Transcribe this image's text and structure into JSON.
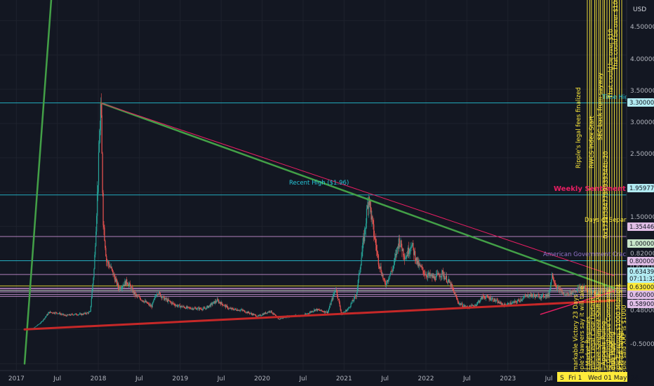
{
  "price_axis": {
    "currency_label": "USD",
    "ticks": [
      "4.50000",
      "4.00000",
      "3.50000",
      "3.00000",
      "2.50000",
      "1.50000",
      "0.82000",
      "0.62000",
      "0.56500",
      "0.55000",
      "0.54432",
      "0.50808",
      "0.48000",
      "-0.50000"
    ],
    "tags": [
      {
        "text": "3.30000",
        "bg": "#b2ebf2",
        "fg": "#131722"
      },
      {
        "text": "1.95977",
        "bg": "#b2ebf2",
        "fg": "#131722"
      },
      {
        "text": "1.35446",
        "bg": "#e1bee7",
        "fg": "#131722"
      },
      {
        "text": "1.00000",
        "bg": "#c8e6c9",
        "fg": "#131722"
      },
      {
        "text": "0.80000",
        "bg": "#e1bee7",
        "fg": "#131722"
      },
      {
        "text": "0.63439",
        "bg": "#b2ebf2",
        "fg": "#131722"
      },
      {
        "text": "07:11:32",
        "bg": "#b2ebf2",
        "fg": "#131722"
      },
      {
        "text": "0.63000",
        "bg": "#ffeb3b",
        "fg": "#131722"
      },
      {
        "text": "0.60000",
        "bg": "#e1bee7",
        "fg": "#131722"
      },
      {
        "text": "0.58900",
        "bg": "#e1bee7",
        "fg": "#131722"
      }
    ]
  },
  "time_axis": {
    "ticks": [
      "2017",
      "Jul",
      "2018",
      "Jul",
      "2019",
      "Jul",
      "2020",
      "Jul",
      "2021",
      "Jul",
      "2022",
      "Jul",
      "2023",
      "Jul"
    ],
    "crosshair_date": "Wed 01 May '24",
    "crosshair_day": "Fri 1",
    "crosshair_marker": "S"
  },
  "annotations": {
    "ath": "Time High ($3.30)",
    "recent_high": "Recent High ($1.96)",
    "weekly": "Weekly Sentiment",
    "days_sep": "Days of Separati",
    "gov": "American Government Crackdown",
    "v1": "Remarkable Victory 23 Days",
    "v2": "Ripple's lawyers say it will take",
    "v3": "Bull Market Resumes",
    "v4": "Ripple's Legal Case Update",
    "v5": "Market Sentiment Shift 20",
    "v6": "SEC Appeals Ruling",
    "v7": "Brad Garlinghouse Comments",
    "v8": "Trading Halt",
    "v9": "Ripple Earnings $1000 Midnight",
    "v10": "XRP Price Target",
    "v11": "Rulings Pending",
    "v12": "Ripple said XRP is $1000",
    "v13": "Ripple's legal fees finalized",
    "v14": "RWCS Index Start",
    "v15": "SEC back from sayway",
    "v16": "That could be over $10",
    "v17": "That could be over $100",
    "v18": "0x1712f5847799939344b-20"
  },
  "colors": {
    "background": "#131722",
    "grid": "#1e222d",
    "cyan": "#26c6da",
    "pink": "#e91e63",
    "violet": "#9575cd",
    "yellow": "#ffeb3b",
    "green_line": "#43a047",
    "red_line": "#c62828",
    "candle_up": "#26a69a",
    "candle_down": "#ef5350"
  },
  "chart_data": {
    "type": "candlestick",
    "ylim": [
      -0.6,
      4.8
    ],
    "xlim": [
      2016.8,
      2024.45
    ],
    "close_series": [
      {
        "t": 2017.1,
        "v": 0.006
      },
      {
        "t": 2017.2,
        "v": 0.01
      },
      {
        "t": 2017.3,
        "v": 0.1
      },
      {
        "t": 2017.4,
        "v": 0.25
      },
      {
        "t": 2017.5,
        "v": 0.24
      },
      {
        "t": 2017.6,
        "v": 0.2
      },
      {
        "t": 2017.7,
        "v": 0.22
      },
      {
        "t": 2017.8,
        "v": 0.22
      },
      {
        "t": 2017.9,
        "v": 0.25
      },
      {
        "t": 2017.95,
        "v": 0.9
      },
      {
        "t": 2018.0,
        "v": 2.3
      },
      {
        "t": 2018.03,
        "v": 3.3
      },
      {
        "t": 2018.06,
        "v": 1.6
      },
      {
        "t": 2018.1,
        "v": 1.0
      },
      {
        "t": 2018.15,
        "v": 0.9
      },
      {
        "t": 2018.25,
        "v": 0.6
      },
      {
        "t": 2018.35,
        "v": 0.7
      },
      {
        "t": 2018.45,
        "v": 0.5
      },
      {
        "t": 2018.55,
        "v": 0.42
      },
      {
        "t": 2018.65,
        "v": 0.33
      },
      {
        "t": 2018.72,
        "v": 0.55
      },
      {
        "t": 2018.8,
        "v": 0.45
      },
      {
        "t": 2018.95,
        "v": 0.35
      },
      {
        "t": 2019.1,
        "v": 0.31
      },
      {
        "t": 2019.3,
        "v": 0.3
      },
      {
        "t": 2019.45,
        "v": 0.42
      },
      {
        "t": 2019.6,
        "v": 0.3
      },
      {
        "t": 2019.75,
        "v": 0.28
      },
      {
        "t": 2019.95,
        "v": 0.19
      },
      {
        "t": 2020.1,
        "v": 0.27
      },
      {
        "t": 2020.2,
        "v": 0.15
      },
      {
        "t": 2020.35,
        "v": 0.2
      },
      {
        "t": 2020.5,
        "v": 0.2
      },
      {
        "t": 2020.65,
        "v": 0.29
      },
      {
        "t": 2020.8,
        "v": 0.25
      },
      {
        "t": 2020.9,
        "v": 0.6
      },
      {
        "t": 2020.97,
        "v": 0.22
      },
      {
        "t": 2021.05,
        "v": 0.3
      },
      {
        "t": 2021.15,
        "v": 0.5
      },
      {
        "t": 2021.25,
        "v": 1.4
      },
      {
        "t": 2021.3,
        "v": 1.96
      },
      {
        "t": 2021.35,
        "v": 1.5
      },
      {
        "t": 2021.42,
        "v": 1.0
      },
      {
        "t": 2021.5,
        "v": 0.65
      },
      {
        "t": 2021.6,
        "v": 0.9
      },
      {
        "t": 2021.67,
        "v": 1.3
      },
      {
        "t": 2021.75,
        "v": 1.05
      },
      {
        "t": 2021.82,
        "v": 1.25
      },
      {
        "t": 2021.9,
        "v": 0.95
      },
      {
        "t": 2022.0,
        "v": 0.8
      },
      {
        "t": 2022.1,
        "v": 0.75
      },
      {
        "t": 2022.2,
        "v": 0.82
      },
      {
        "t": 2022.3,
        "v": 0.65
      },
      {
        "t": 2022.4,
        "v": 0.38
      },
      {
        "t": 2022.5,
        "v": 0.32
      },
      {
        "t": 2022.6,
        "v": 0.35
      },
      {
        "t": 2022.7,
        "v": 0.48
      },
      {
        "t": 2022.8,
        "v": 0.45
      },
      {
        "t": 2022.95,
        "v": 0.35
      },
      {
        "t": 2023.1,
        "v": 0.4
      },
      {
        "t": 2023.25,
        "v": 0.5
      },
      {
        "t": 2023.4,
        "v": 0.48
      },
      {
        "t": 2023.5,
        "v": 0.5
      },
      {
        "t": 2023.54,
        "v": 0.8
      },
      {
        "t": 2023.6,
        "v": 0.6
      },
      {
        "t": 2023.7,
        "v": 0.5
      },
      {
        "t": 2023.8,
        "v": 0.55
      },
      {
        "t": 2023.9,
        "v": 0.62
      },
      {
        "t": 2024.0,
        "v": 0.56
      },
      {
        "t": 2024.1,
        "v": 0.52
      },
      {
        "t": 2024.2,
        "v": 0.6
      },
      {
        "t": 2024.3,
        "v": 0.55
      }
    ],
    "horizontal_levels": [
      {
        "price": 3.3,
        "color": "#26c6da"
      },
      {
        "price": 1.96,
        "color": "#26c6da"
      },
      {
        "price": 1.354,
        "color": "#ce93d8"
      },
      {
        "price": 1.0,
        "color": "#26c6da"
      },
      {
        "price": 0.8,
        "color": "#ce93d8"
      },
      {
        "price": 0.634,
        "color": "#ffeb3b"
      },
      {
        "price": 0.6,
        "color": "#ce93d8"
      },
      {
        "price": 0.589,
        "color": "#ce93d8"
      },
      {
        "price": 0.565,
        "color": "#ffffff"
      },
      {
        "price": 0.544,
        "color": "#ce93d8"
      },
      {
        "price": 0.508,
        "color": "#ce93d8"
      },
      {
        "price": 0.48,
        "color": "#ce93d8"
      }
    ],
    "trendlines": [
      {
        "from": [
          2017.1,
          -0.5
        ],
        "to": [
          2017.45,
          5.2
        ],
        "color": "#43a047",
        "width": 2.5
      },
      {
        "from": [
          2018.03,
          3.3
        ],
        "to": [
          2024.3,
          0.6
        ],
        "color": "#43a047",
        "width": 2.5
      },
      {
        "from": [
          2018.03,
          3.3
        ],
        "to": [
          2024.3,
          0.78
        ],
        "color": "#e91e63",
        "width": 1
      },
      {
        "from": [
          2017.1,
          0.0
        ],
        "to": [
          2024.3,
          0.42
        ],
        "color": "#c62828",
        "width": 3
      },
      {
        "from": [
          2023.4,
          0.22
        ],
        "to": [
          2024.3,
          0.56
        ],
        "color": "#e91e63",
        "width": 1.5
      }
    ],
    "vertical_markers_x": [
      2023.97,
      2024.0,
      2024.02,
      2024.06,
      2024.08,
      2024.11,
      2024.13,
      2024.16,
      2024.18,
      2024.21,
      2024.24,
      2024.27,
      2024.3,
      2024.33,
      2024.36,
      2024.39
    ]
  }
}
